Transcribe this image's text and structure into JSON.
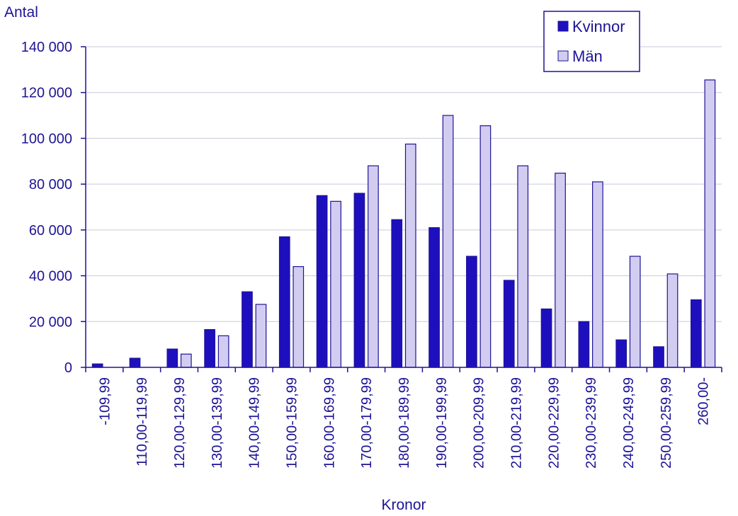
{
  "chart_data": {
    "type": "bar",
    "title": "",
    "ylabel": "Antal",
    "xlabel": "Kronor",
    "ylim": [
      0,
      140000
    ],
    "yticks": [
      0,
      20000,
      40000,
      60000,
      80000,
      100000,
      120000,
      140000
    ],
    "ytick_labels": [
      "0",
      "20 000",
      "40 000",
      "60 000",
      "80 000",
      "100 000",
      "120 000",
      "140 000"
    ],
    "grid": true,
    "legend_position": "top-right",
    "categories": [
      "-109,99",
      "110,00-119,99",
      "120,00-129,99",
      "130,00-139,99",
      "140,00-149,99",
      "150,00-159,99",
      "160,00-169,99",
      "170,00-179,99",
      "180,00-189,99",
      "190,00-199,99",
      "200,00-209,99",
      "210,00-219,99",
      "220,00-229,99",
      "230,00-239,99",
      "240,00-249,99",
      "250,00-259,99",
      "260,00-"
    ],
    "series": [
      {
        "name": "Kvinnor",
        "color": "#1e0fbe",
        "values": [
          1500,
          4000,
          8000,
          16500,
          33000,
          57000,
          75000,
          76000,
          64500,
          61000,
          48500,
          38000,
          25500,
          20000,
          12000,
          9000,
          29500
        ]
      },
      {
        "name": "Män",
        "color": "#d2cdf0",
        "values": [
          0,
          0,
          5800,
          13800,
          27500,
          44000,
          72500,
          88000,
          97500,
          110000,
          105500,
          88000,
          84800,
          81000,
          48500,
          40800,
          125500
        ]
      }
    ]
  }
}
